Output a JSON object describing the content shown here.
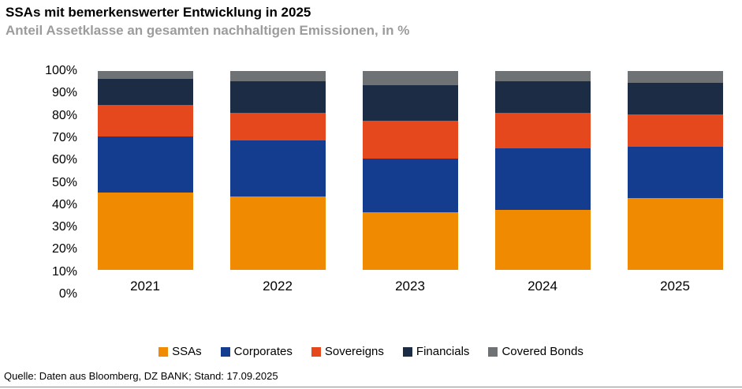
{
  "chart_data": {
    "type": "bar",
    "stacked": true,
    "stacked_100_percent": true,
    "title": "SSAs mit bemerkenswerter Entwicklung in 2025",
    "subtitle": "Anteil Assetklasse an gesamten nachhaltigen Emissionen, in %",
    "categories": [
      "2021",
      "2022",
      "2023",
      "2024",
      "2025"
    ],
    "series": [
      {
        "name": "SSAs",
        "color": "#F08A00",
        "values": [
          39,
          37,
          29,
          30,
          36
        ]
      },
      {
        "name": "Corporates",
        "color": "#143D8F",
        "values": [
          28,
          28,
          27,
          31,
          26
        ]
      },
      {
        "name": "Sovereigns",
        "color": "#E4481C",
        "values": [
          16,
          14,
          19,
          18,
          16
        ]
      },
      {
        "name": "Financials",
        "color": "#1B2C44",
        "values": [
          13,
          16,
          18,
          16,
          16
        ]
      },
      {
        "name": "Covered Bonds",
        "color": "#6F7275",
        "values": [
          4,
          5,
          7,
          5,
          6
        ]
      }
    ],
    "xlabel": "",
    "ylabel": "",
    "ylim": [
      0,
      100
    ],
    "y_ticks": [
      "0%",
      "10%",
      "20%",
      "30%",
      "40%",
      "50%",
      "60%",
      "70%",
      "80%",
      "90%",
      "100%"
    ],
    "grid": false,
    "legend_position": "bottom"
  },
  "footer": {
    "source": "Quelle: Daten aus Bloomberg, DZ BANK; Stand: 17.09.2025"
  }
}
